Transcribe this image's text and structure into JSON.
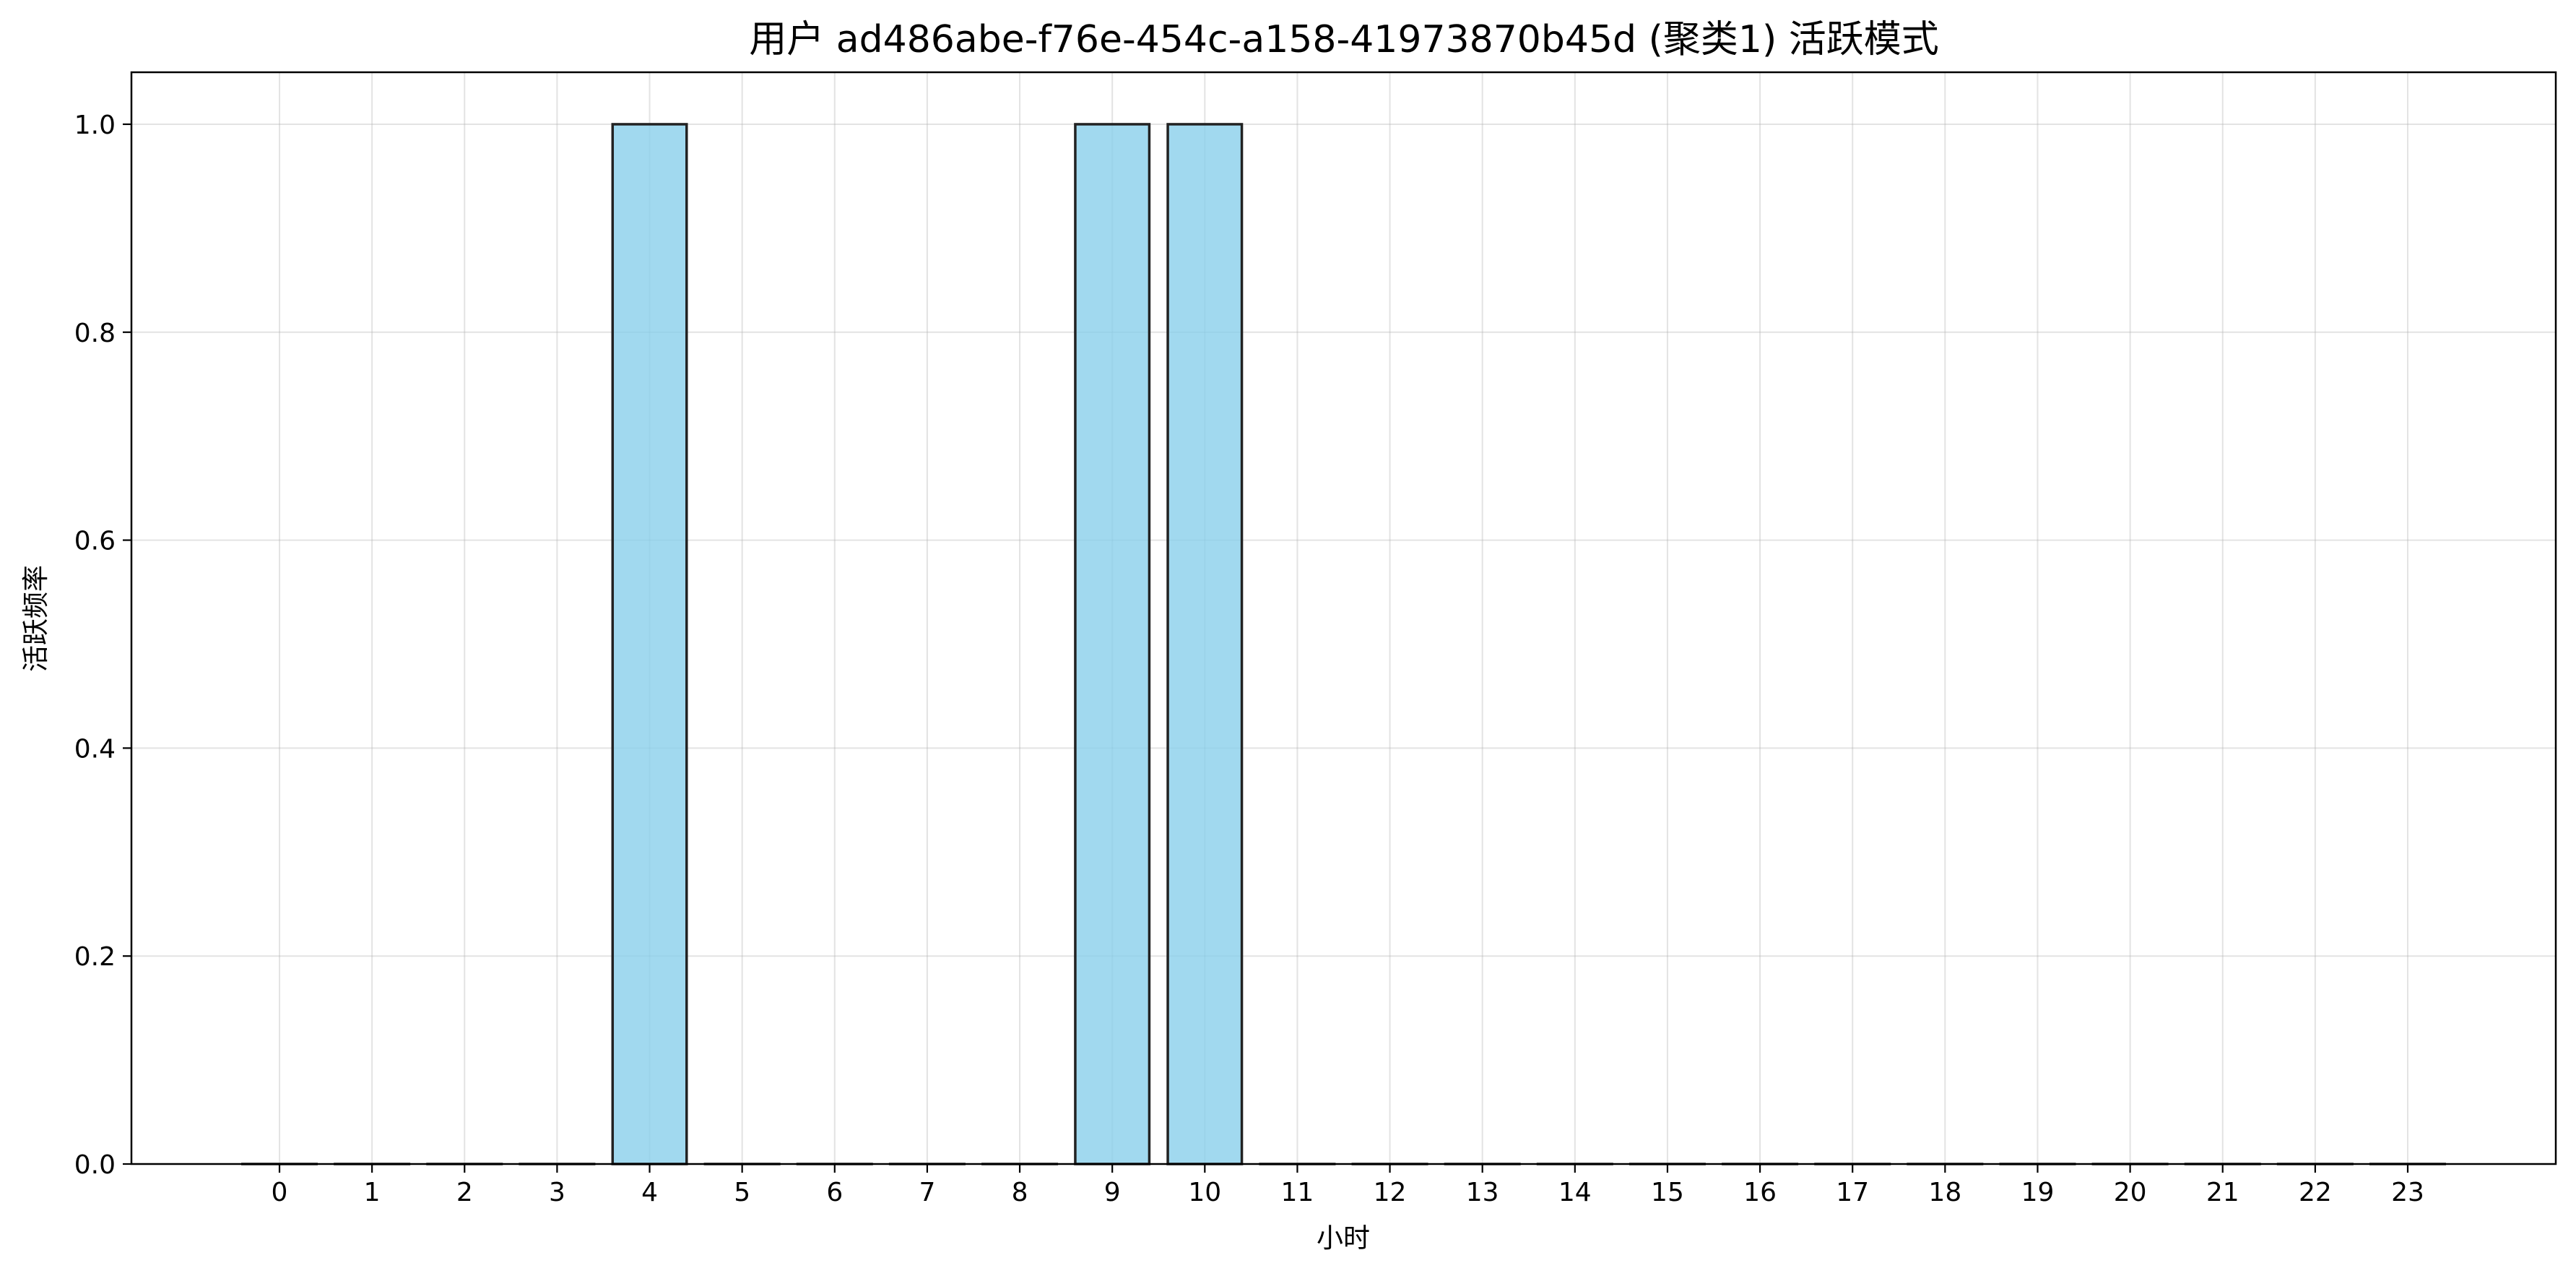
{
  "chart_data": {
    "type": "bar",
    "title": "用户 ad486abe-f76e-454c-a158-41973870b45d (聚类1) 活跃模式",
    "xlabel": "小时",
    "ylabel": "活跃频率",
    "categories": [
      "0",
      "1",
      "2",
      "3",
      "4",
      "5",
      "6",
      "7",
      "8",
      "9",
      "10",
      "11",
      "12",
      "13",
      "14",
      "15",
      "16",
      "17",
      "18",
      "19",
      "20",
      "21",
      "22",
      "23"
    ],
    "values": [
      0,
      0,
      0,
      0,
      1.0,
      0,
      0,
      0,
      0,
      1.0,
      1.0,
      0,
      0,
      0,
      0,
      0,
      0,
      0,
      0,
      0,
      0,
      0,
      0,
      0
    ],
    "ylim": [
      0,
      1.05
    ],
    "yticks": [
      0.0,
      0.2,
      0.4,
      0.6,
      0.8,
      1.0
    ],
    "ytick_labels": [
      "0.0",
      "0.2",
      "0.4",
      "0.6",
      "0.8",
      "1.0"
    ],
    "xlim": [
      -1.6,
      24.6
    ],
    "grid": true,
    "bar_color": "#87ceeb",
    "bar_edge_color": "#222222"
  }
}
